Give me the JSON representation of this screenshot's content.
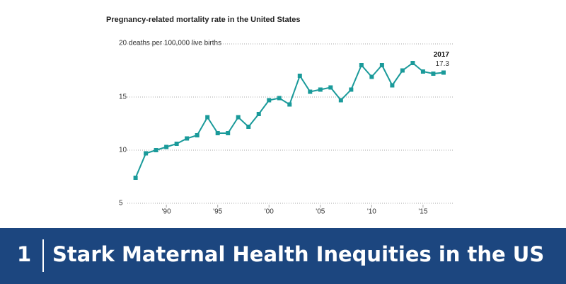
{
  "chart_data": {
    "type": "line",
    "title": "Pregnancy-related mortality rate in the United States",
    "x": [
      1987,
      1988,
      1989,
      1990,
      1991,
      1992,
      1993,
      1994,
      1995,
      1996,
      1997,
      1998,
      1999,
      2000,
      2001,
      2002,
      2003,
      2004,
      2005,
      2006,
      2007,
      2008,
      2009,
      2010,
      2011,
      2012,
      2013,
      2014,
      2015,
      2016,
      2017
    ],
    "series": [
      {
        "color": "#1a9a9a",
        "values": [
          7.4,
          9.7,
          10.0,
          10.3,
          10.6,
          11.1,
          11.4,
          13.1,
          11.6,
          11.6,
          13.1,
          12.2,
          13.4,
          14.7,
          14.9,
          14.3,
          17.0,
          15.5,
          15.7,
          15.9,
          14.7,
          15.7,
          18.0,
          16.9,
          18.0,
          16.1,
          17.5,
          18.2,
          17.4,
          17.2,
          17.3
        ]
      }
    ],
    "xlim": [
      1986.2,
      2017.9
    ],
    "xticks": [
      {
        "value": 1990,
        "label": "'90"
      },
      {
        "value": 1995,
        "label": "'95"
      },
      {
        "value": 2000,
        "label": "'00"
      },
      {
        "value": 2005,
        "label": "'05"
      },
      {
        "value": 2010,
        "label": "'10"
      },
      {
        "value": 2015,
        "label": "'15"
      }
    ],
    "ylim": [
      5,
      20
    ],
    "yticks": [
      5,
      10,
      15,
      {
        "value": 20,
        "label": "20 deaths per 100,000 live births"
      }
    ],
    "grid": true
  },
  "banner": {
    "number": "1",
    "title": "Stark Maternal Health Inequities in the US"
  }
}
